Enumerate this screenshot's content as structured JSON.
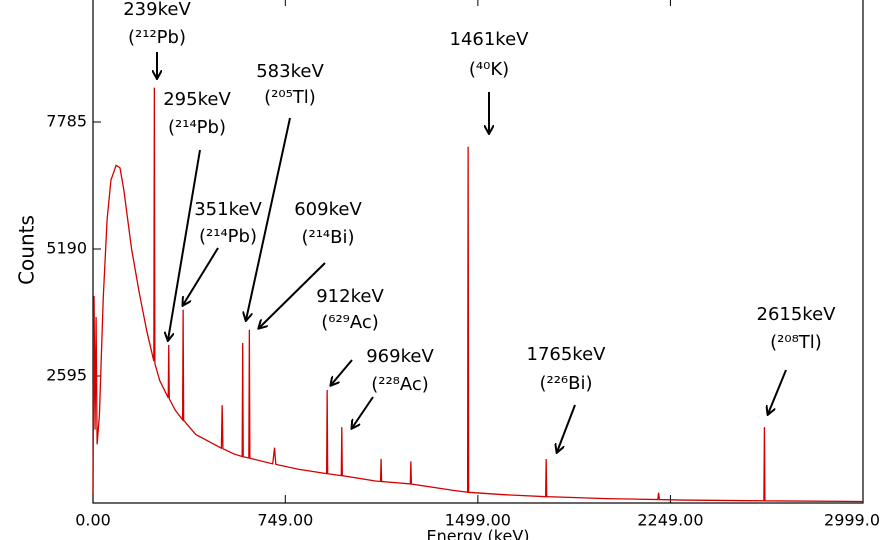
{
  "chart_data": {
    "type": "line",
    "y_label": "Counts",
    "x_label": "Energy (keV)",
    "xlim": [
      0,
      2999
    ],
    "ylim": [
      0,
      10380
    ],
    "xticks": [
      {
        "value": 0,
        "label": "0.00"
      },
      {
        "value": 749,
        "label": "749.00"
      },
      {
        "value": 1499,
        "label": "1499.00"
      },
      {
        "value": 2249,
        "label": "2249.00"
      },
      {
        "value": 2999,
        "label": "2999.0"
      }
    ],
    "yticks": [
      2595,
      5190,
      7785
    ],
    "series": [
      {
        "color": "#d40000",
        "x": [
          0,
          4,
          8,
          12,
          16,
          25,
          40,
          55,
          70,
          90,
          105,
          120,
          150,
          180,
          210,
          237,
          239,
          241,
          260,
          293,
          295,
          297,
          320,
          349,
          351,
          353,
          400,
          500,
          503,
          506,
          550,
          581,
          583,
          585,
          607,
          609,
          611,
          700,
          707,
          712,
          800,
          910,
          912,
          914,
          967,
          969,
          971,
          1100,
          1120,
          1122,
          1124,
          1236,
          1238,
          1240,
          1400,
          1459,
          1461,
          1463,
          1600,
          1763,
          1765,
          1767,
          2000,
          2200,
          2203,
          2206,
          2300,
          2613,
          2615,
          2617,
          2999
        ],
        "values": [
          200,
          4230,
          1500,
          3800,
          1200,
          1800,
          4200,
          5800,
          6600,
          6900,
          6850,
          6400,
          5200,
          4300,
          3500,
          2900,
          8487,
          2850,
          2500,
          2150,
          3230,
          2130,
          1900,
          1700,
          3950,
          1690,
          1400,
          1120,
          2000,
          1110,
          1000,
          950,
          3270,
          945,
          920,
          3540,
          915,
          800,
          1130,
          790,
          690,
          600,
          2310,
          598,
          560,
          1550,
          558,
          450,
          440,
          900,
          438,
          390,
          850,
          388,
          260,
          220,
          7280,
          218,
          170,
          130,
          900,
          130,
          90,
          70,
          210,
          70,
          60,
          45,
          1550,
          45,
          30
        ]
      }
    ],
    "annotations": [
      {
        "energy": "239keV",
        "isotope": "(²¹²Pb)"
      },
      {
        "energy": "295keV",
        "isotope": "(²¹⁴Pb)"
      },
      {
        "energy": "351keV",
        "isotope": "(²¹⁴Pb)"
      },
      {
        "energy": "583keV",
        "isotope": "(²⁰⁵Tl)"
      },
      {
        "energy": "609keV",
        "isotope": "(²¹⁴Bi)"
      },
      {
        "energy": "912keV",
        "isotope": "(⁶²⁹Ac)"
      },
      {
        "energy": "969keV",
        "isotope": "(²²⁸Ac)"
      },
      {
        "energy": "1461keV",
        "isotope": "(⁴⁰K)"
      },
      {
        "energy": "1765keV",
        "isotope": "(²²⁶Bi)"
      },
      {
        "energy": "2615keV",
        "isotope": "(²⁰⁸Tl)"
      }
    ]
  }
}
